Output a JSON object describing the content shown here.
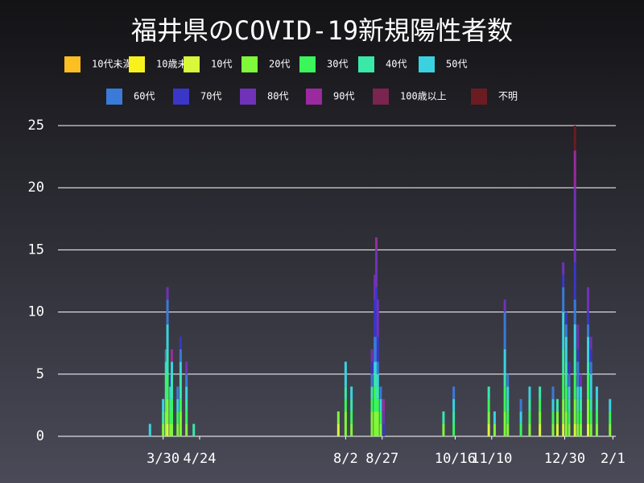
{
  "chart_data": {
    "type": "bar",
    "stacked": true,
    "title": "福井県のCOVID-19新規陽性者数",
    "x": [
      -9,
      0,
      2,
      3,
      5,
      6,
      10,
      12,
      16,
      21,
      120,
      125,
      129,
      143,
      145,
      146,
      147,
      149,
      151,
      192,
      199,
      223,
      227,
      234,
      236,
      245,
      251,
      258,
      267,
      270,
      274,
      276,
      278,
      282,
      284,
      286,
      291,
      293,
      297,
      306
    ],
    "xlim": [
      -72,
      310
    ],
    "xticks": [
      {
        "value": 0,
        "label": "3/30"
      },
      {
        "value": 25,
        "label": "4/24"
      },
      {
        "value": 125,
        "label": "8/2"
      },
      {
        "value": 150,
        "label": "8/27"
      },
      {
        "value": 200,
        "label": "10/16"
      },
      {
        "value": 225,
        "label": "11/10"
      },
      {
        "value": 275,
        "label": "12/30"
      },
      {
        "value": 308,
        "label": "2/1"
      }
    ],
    "ylim": [
      0,
      25
    ],
    "yticks": [
      0,
      5,
      10,
      15,
      20,
      25
    ],
    "grid": true,
    "series": [
      {
        "name": "10代未満",
        "color": "#fbbf24",
        "values": [
          0,
          0,
          0,
          0,
          0,
          0,
          0,
          0,
          0,
          0,
          0,
          0,
          0,
          0,
          0,
          0,
          0,
          0,
          0,
          0,
          0,
          0,
          0,
          0,
          0,
          0,
          0,
          0,
          0,
          0,
          0,
          0,
          0,
          0,
          0,
          0,
          0,
          0,
          0,
          0
        ]
      },
      {
        "name": "10歳未満",
        "color": "#f7f21c",
        "values": [
          0,
          0,
          0,
          0,
          0,
          0,
          0,
          0,
          0,
          0,
          0,
          0,
          0,
          0,
          0,
          0,
          0,
          0,
          0,
          0,
          0,
          0,
          0,
          0,
          0,
          0,
          0,
          0,
          0,
          0,
          0,
          0,
          0,
          0,
          0,
          0,
          0,
          0,
          0,
          0
        ]
      },
      {
        "name": "10代",
        "color": "#d8f83a",
        "values": [
          0,
          0,
          0,
          1,
          0,
          0,
          0,
          0,
          0,
          0,
          1,
          0,
          0,
          0,
          0,
          0,
          0,
          0,
          0,
          0,
          0,
          1,
          0,
          0,
          0,
          0,
          0,
          1,
          0,
          1,
          1,
          0,
          0,
          1,
          0,
          0,
          1,
          0,
          0,
          0
        ]
      },
      {
        "name": "20代",
        "color": "#80f83a",
        "values": [
          0,
          1,
          2,
          2,
          1,
          1,
          1,
          2,
          1,
          0,
          1,
          2,
          1,
          2,
          2,
          2,
          2,
          1,
          0,
          1,
          0,
          1,
          1,
          2,
          1,
          0,
          1,
          1,
          1,
          1,
          2,
          2,
          1,
          2,
          1,
          1,
          2,
          1,
          1,
          1
        ]
      },
      {
        "name": "30代",
        "color": "#3af65a",
        "values": [
          0,
          0,
          1,
          2,
          1,
          2,
          1,
          1,
          1,
          0,
          0,
          1,
          1,
          1,
          2,
          1,
          1,
          1,
          0,
          0,
          1,
          1,
          0,
          2,
          1,
          1,
          1,
          1,
          1,
          0,
          2,
          2,
          1,
          2,
          1,
          1,
          2,
          1,
          1,
          1
        ]
      },
      {
        "name": "40代",
        "color": "#3ae8a8",
        "values": [
          0,
          1,
          2,
          2,
          1,
          2,
          0,
          2,
          1,
          1,
          0,
          1,
          1,
          1,
          1,
          2,
          1,
          0,
          0,
          1,
          1,
          1,
          0,
          1,
          1,
          0,
          1,
          1,
          0,
          1,
          2,
          2,
          1,
          2,
          1,
          1,
          1,
          1,
          1,
          0
        ]
      },
      {
        "name": "50代",
        "color": "#3ad2e0",
        "values": [
          1,
          1,
          1,
          2,
          1,
          1,
          1,
          1,
          1,
          0,
          0,
          2,
          1,
          0,
          1,
          1,
          1,
          1,
          0,
          0,
          1,
          0,
          1,
          2,
          1,
          1,
          1,
          0,
          1,
          0,
          3,
          2,
          1,
          2,
          1,
          1,
          2,
          2,
          1,
          1
        ]
      },
      {
        "name": "60代",
        "color": "#3a7ad8",
        "values": [
          0,
          0,
          1,
          2,
          0,
          0,
          1,
          1,
          1,
          0,
          0,
          0,
          0,
          1,
          2,
          2,
          1,
          1,
          0,
          0,
          1,
          0,
          0,
          3,
          1,
          1,
          0,
          0,
          1,
          0,
          2,
          1,
          1,
          2,
          2,
          0,
          1,
          1,
          0,
          0
        ]
      },
      {
        "name": "70代",
        "color": "#3a36c8",
        "values": [
          0,
          0,
          0,
          0,
          1,
          0,
          0,
          1,
          0,
          0,
          0,
          0,
          0,
          1,
          3,
          4,
          2,
          0,
          1,
          0,
          0,
          0,
          0,
          0,
          0,
          0,
          0,
          0,
          0,
          0,
          1,
          1,
          1,
          3,
          1,
          0,
          1,
          1,
          0,
          0
        ]
      },
      {
        "name": "80代",
        "color": "#7032b8",
        "values": [
          0,
          0,
          0,
          1,
          0,
          0,
          0,
          0,
          1,
          0,
          0,
          0,
          0,
          1,
          2,
          3,
          3,
          0,
          1,
          0,
          0,
          0,
          0,
          1,
          0,
          0,
          0,
          0,
          0,
          0,
          1,
          0,
          0,
          6,
          2,
          1,
          2,
          1,
          0,
          0
        ]
      },
      {
        "name": "90代",
        "color": "#9a2a9e",
        "values": [
          0,
          0,
          0,
          0,
          0,
          1,
          0,
          0,
          0,
          0,
          0,
          0,
          0,
          0,
          0,
          1,
          0,
          0,
          1,
          0,
          0,
          0,
          0,
          0,
          0,
          0,
          0,
          0,
          0,
          0,
          0,
          0,
          0,
          3,
          0,
          0,
          0,
          0,
          0,
          0
        ]
      },
      {
        "name": "100歳以上",
        "color": "#7a2450",
        "values": [
          0,
          0,
          0,
          0,
          0,
          0,
          0,
          0,
          0,
          0,
          0,
          0,
          0,
          0,
          0,
          0,
          0,
          0,
          0,
          0,
          0,
          0,
          0,
          0,
          0,
          0,
          0,
          0,
          0,
          0,
          0,
          0,
          0,
          0,
          0,
          0,
          0,
          0,
          0,
          0
        ]
      },
      {
        "name": "不明",
        "color": "#6a1c22",
        "values": [
          0,
          0,
          0,
          0,
          0,
          0,
          0,
          0,
          0,
          0,
          0,
          0,
          0,
          0,
          0,
          0,
          0,
          0,
          0,
          0,
          0,
          0,
          0,
          0,
          0,
          0,
          0,
          0,
          0,
          0,
          0,
          0,
          0,
          2,
          0,
          0,
          0,
          0,
          0,
          0
        ]
      }
    ]
  }
}
